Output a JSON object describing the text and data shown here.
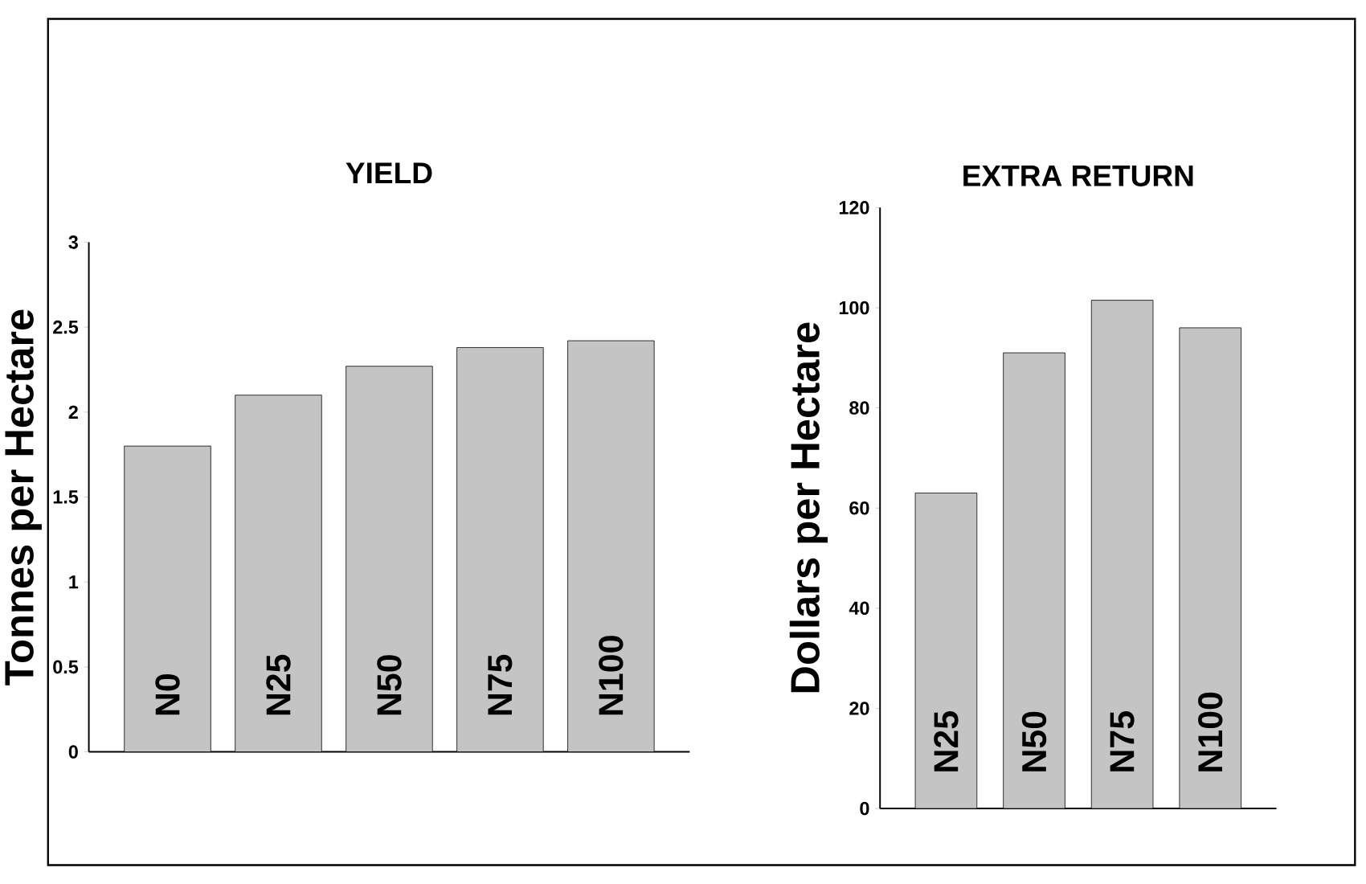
{
  "chart_data": [
    {
      "type": "bar",
      "title": "YIELD",
      "ylabel": "Tonnes per Hectare",
      "categories": [
        "N0",
        "N25",
        "N50",
        "N75",
        "N100"
      ],
      "values": [
        1.8,
        2.1,
        2.27,
        2.38,
        2.42
      ],
      "color": "#c4c4c4",
      "ylim": [
        0,
        3
      ],
      "yticks": [
        0,
        0.5,
        1,
        1.5,
        2,
        2.5,
        3
      ]
    },
    {
      "type": "bar",
      "title": "EXTRA RETURN",
      "ylabel": "Dollars per Hectare",
      "categories": [
        "N25",
        "N50",
        "N75",
        "N100"
      ],
      "values": [
        63,
        91,
        101.5,
        96
      ],
      "color": "#c4c4c4",
      "ylim": [
        0,
        120
      ],
      "yticks": [
        0,
        20,
        40,
        60,
        80,
        100,
        120
      ]
    }
  ]
}
